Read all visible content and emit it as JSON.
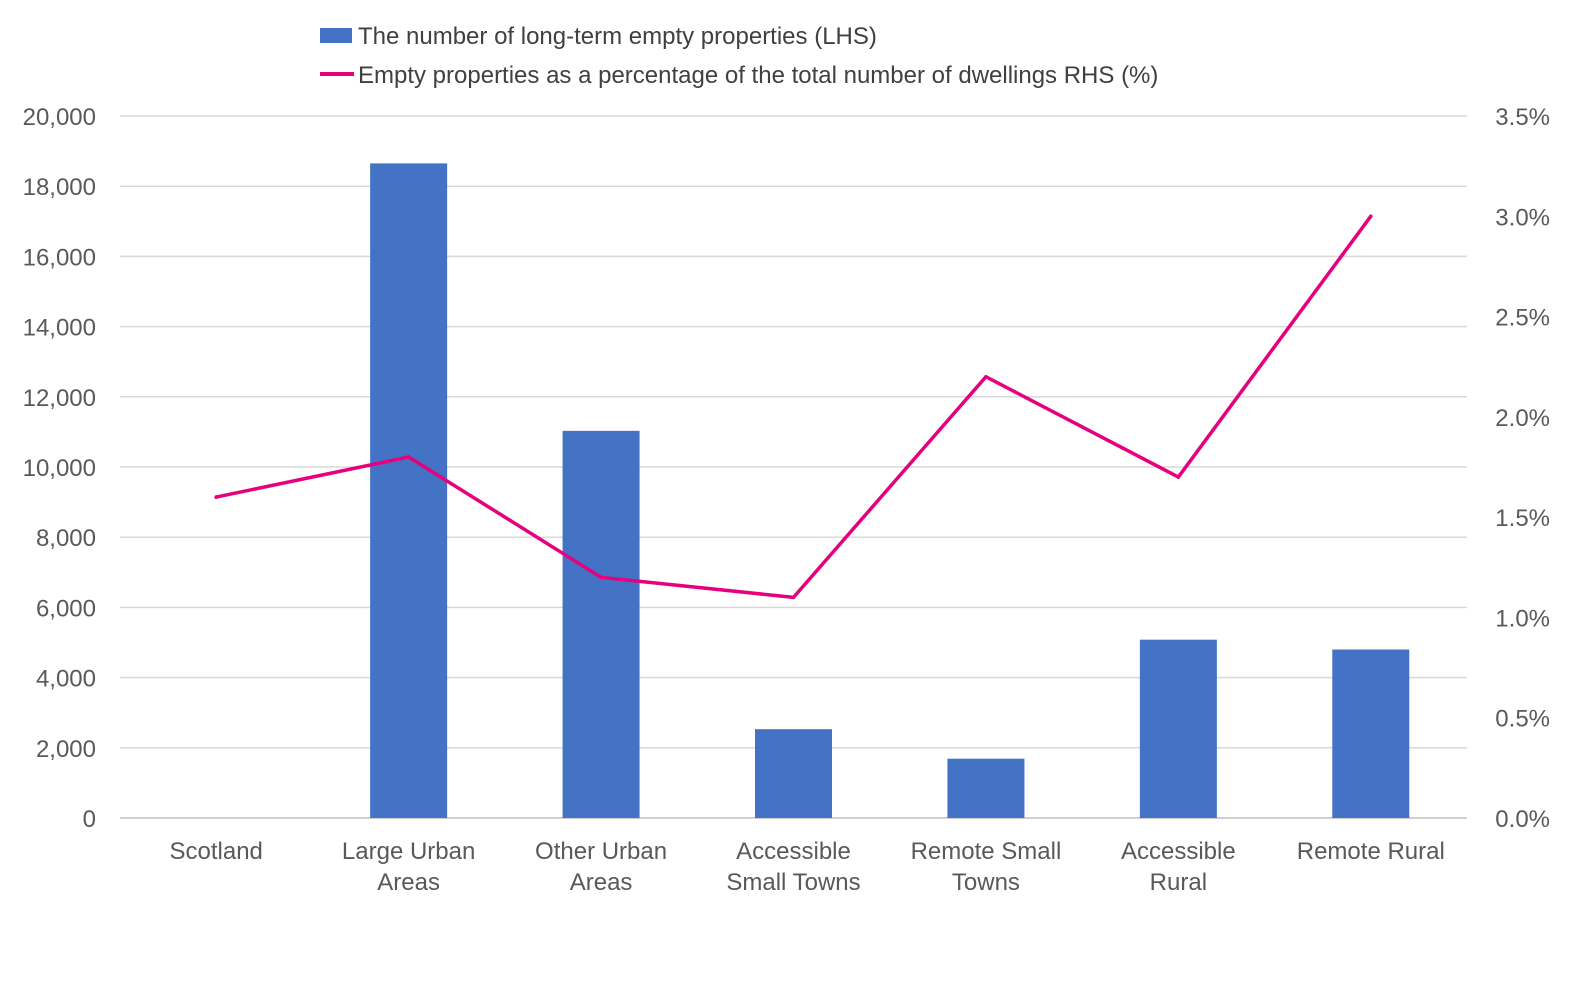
{
  "chart_data": {
    "type": "bar",
    "categories": [
      [
        "Scotland"
      ],
      [
        "Large Urban",
        "Areas"
      ],
      [
        "Other Urban",
        "Areas"
      ],
      [
        "Accessible",
        "Small Towns"
      ],
      [
        "Remote Small",
        "Towns"
      ],
      [
        "Accessible",
        "Rural"
      ],
      [
        "Remote Rural"
      ]
    ],
    "series": [
      {
        "name": "The number of long-term empty properties (LHS)",
        "type": "bar",
        "axis": "left",
        "color": "#4472C4",
        "values": [
          null,
          18650,
          11030,
          2530,
          1690,
          5080,
          4800
        ]
      },
      {
        "name": "Empty properties as a percentage of the total number of dwellings RHS (%)",
        "type": "line",
        "axis": "right",
        "color": "#E6007E",
        "values": [
          1.6,
          1.8,
          1.2,
          1.1,
          2.2,
          1.7,
          3.0
        ]
      }
    ],
    "y_left": {
      "min": 0,
      "max": 20000,
      "ticks": [
        "0",
        "2,000",
        "4,000",
        "6,000",
        "8,000",
        "10,000",
        "12,000",
        "14,000",
        "16,000",
        "18,000",
        "20,000"
      ]
    },
    "y_right": {
      "min": 0,
      "max": 3.5,
      "ticks": [
        "0.0%",
        "0.5%",
        "1.0%",
        "1.5%",
        "2.0%",
        "2.5%",
        "3.0%",
        "3.5%"
      ]
    },
    "grid": true,
    "legend_position": "top"
  }
}
